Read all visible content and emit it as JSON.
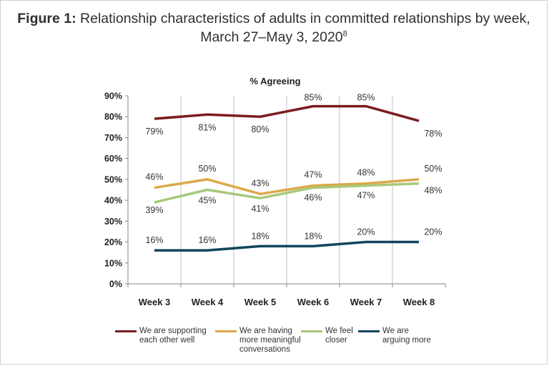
{
  "figure": {
    "label": "Figure 1:",
    "title_line1": "Relationship characteristics of adults in committed relationships by week,",
    "title_line2": "March 27–May 3, 2020",
    "footnote_ref": "8"
  },
  "chart_data": {
    "type": "line",
    "title": "% Agreeing",
    "xlabel": "",
    "ylabel": "",
    "categories": [
      "Week 3",
      "Week 4",
      "Week 5",
      "Week 6",
      "Week 7",
      "Week 8"
    ],
    "ylim": [
      0,
      90
    ],
    "yticks": [
      "0%",
      "10%",
      "20%",
      "30%",
      "40%",
      "50%",
      "60%",
      "70%",
      "80%",
      "90%"
    ],
    "grid": "vertical",
    "legend_position": "bottom",
    "series": [
      {
        "name": "We are supporting\neach other well",
        "color": "#7b1c20",
        "values": [
          79,
          81,
          80,
          85,
          85,
          78
        ],
        "labels": [
          "79%",
          "81%",
          "80%",
          "85%",
          "85%",
          "78%"
        ]
      },
      {
        "name": "We are having\nmore meaningful\nconversations",
        "color": "#dca94b",
        "values": [
          46,
          50,
          43,
          47,
          48,
          50
        ],
        "labels": [
          "46%",
          "50%",
          "43%",
          "47%",
          "48%",
          "50%"
        ]
      },
      {
        "name": "We feel closer",
        "color": "#a6c97a",
        "values": [
          39,
          45,
          41,
          46,
          47,
          48
        ],
        "labels": [
          "39%",
          "45%",
          "41%",
          "46%",
          "47%",
          "48%"
        ]
      },
      {
        "name": "We are\narguing more",
        "color": "#12445c",
        "values": [
          16,
          16,
          18,
          18,
          20,
          20
        ],
        "labels": [
          "16%",
          "16%",
          "18%",
          "18%",
          "20%",
          "20%"
        ]
      }
    ]
  }
}
